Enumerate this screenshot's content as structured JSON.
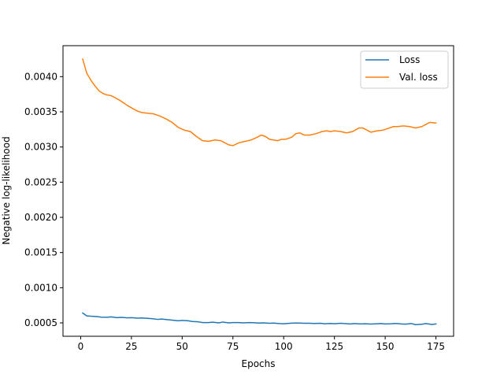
{
  "chart_data": {
    "type": "line",
    "xlabel": "Epochs",
    "ylabel": "Negative log-likelihood",
    "xlim": [
      -8.7,
      183.7
    ],
    "ylim": [
      0.00031,
      0.00444
    ],
    "xticks": [
      0,
      25,
      50,
      75,
      100,
      125,
      150,
      175
    ],
    "yticks": [
      0.0005,
      0.001,
      0.0015,
      0.002,
      0.0025,
      0.003,
      0.0035,
      0.004
    ],
    "xtick_labels": [
      "0",
      "25",
      "50",
      "75",
      "100",
      "125",
      "150",
      "175"
    ],
    "ytick_labels": [
      "0.0005",
      "0.0010",
      "0.0015",
      "0.0020",
      "0.0025",
      "0.0030",
      "0.0035",
      "0.0040"
    ],
    "legend_position": "top-right",
    "grid": false,
    "series": [
      {
        "name": "Loss",
        "color": "#1f77b4",
        "points": [
          [
            1,
            0.00064
          ],
          [
            3,
            0.0006
          ],
          [
            5,
            0.000595
          ],
          [
            8,
            0.00059
          ],
          [
            10,
            0.000582
          ],
          [
            13,
            0.00058
          ],
          [
            15,
            0.000585
          ],
          [
            18,
            0.000575
          ],
          [
            20,
            0.000578
          ],
          [
            23,
            0.000572
          ],
          [
            25,
            0.000575
          ],
          [
            28,
            0.000568
          ],
          [
            30,
            0.00057
          ],
          [
            33,
            0.000565
          ],
          [
            35,
            0.00056
          ],
          [
            38,
            0.00055
          ],
          [
            40,
            0.000555
          ],
          [
            43,
            0.000545
          ],
          [
            45,
            0.00054
          ],
          [
            48,
            0.00053
          ],
          [
            50,
            0.000535
          ],
          [
            53,
            0.00053
          ],
          [
            55,
            0.00052
          ],
          [
            58,
            0.000515
          ],
          [
            60,
            0.000505
          ],
          [
            63,
            0.000505
          ],
          [
            65,
            0.00051
          ],
          [
            68,
            0.0005
          ],
          [
            70,
            0.000512
          ],
          [
            73,
            0.0005
          ],
          [
            75,
            0.000505
          ],
          [
            78,
            0.000505
          ],
          [
            80,
            0.0005
          ],
          [
            83,
            0.000505
          ],
          [
            85,
            0.000503
          ],
          [
            88,
            0.000498
          ],
          [
            90,
            0.0005
          ],
          [
            93,
            0.000495
          ],
          [
            95,
            0.000498
          ],
          [
            98,
            0.00049
          ],
          [
            100,
            0.000488
          ],
          [
            103,
            0.000495
          ],
          [
            105,
            0.000498
          ],
          [
            108,
            0.000497
          ],
          [
            110,
            0.000495
          ],
          [
            113,
            0.000495
          ],
          [
            115,
            0.000492
          ],
          [
            118,
            0.000495
          ],
          [
            120,
            0.000488
          ],
          [
            123,
            0.000492
          ],
          [
            125,
            0.000488
          ],
          [
            128,
            0.000495
          ],
          [
            130,
            0.00049
          ],
          [
            133,
            0.000485
          ],
          [
            135,
            0.00049
          ],
          [
            138,
            0.000485
          ],
          [
            140,
            0.000488
          ],
          [
            143,
            0.000483
          ],
          [
            145,
            0.000487
          ],
          [
            148,
            0.00049
          ],
          [
            150,
            0.000485
          ],
          [
            153,
            0.000488
          ],
          [
            155,
            0.000492
          ],
          [
            158,
            0.000485
          ],
          [
            160,
            0.000482
          ],
          [
            163,
            0.00049
          ],
          [
            165,
            0.000475
          ],
          [
            168,
            0.00048
          ],
          [
            170,
            0.00049
          ],
          [
            173,
            0.000478
          ],
          [
            175,
            0.000485
          ]
        ]
      },
      {
        "name": "Val. loss",
        "color": "#ff7f0e",
        "points": [
          [
            1,
            0.00425
          ],
          [
            2,
            0.00415
          ],
          [
            3,
            0.00405
          ],
          [
            5,
            0.00395
          ],
          [
            7,
            0.00387
          ],
          [
            9,
            0.0038
          ],
          [
            11,
            0.00376
          ],
          [
            13,
            0.00374
          ],
          [
            15,
            0.00373
          ],
          [
            17,
            0.0037
          ],
          [
            20,
            0.00365
          ],
          [
            23,
            0.00359
          ],
          [
            26,
            0.00354
          ],
          [
            28,
            0.00351
          ],
          [
            30,
            0.00349
          ],
          [
            33,
            0.00348
          ],
          [
            36,
            0.00347
          ],
          [
            39,
            0.00344
          ],
          [
            42,
            0.0034
          ],
          [
            45,
            0.00335
          ],
          [
            48,
            0.00328
          ],
          [
            51,
            0.00324
          ],
          [
            54,
            0.00322
          ],
          [
            57,
            0.00315
          ],
          [
            60,
            0.00309
          ],
          [
            63,
            0.00308
          ],
          [
            66,
            0.0031
          ],
          [
            69,
            0.00309
          ],
          [
            71,
            0.00306
          ],
          [
            73,
            0.00303
          ],
          [
            75,
            0.00302
          ],
          [
            78,
            0.00306
          ],
          [
            81,
            0.00308
          ],
          [
            84,
            0.0031
          ],
          [
            87,
            0.00314
          ],
          [
            89,
            0.00317
          ],
          [
            91,
            0.00315
          ],
          [
            93,
            0.00311
          ],
          [
            95,
            0.0031
          ],
          [
            97,
            0.00309
          ],
          [
            99,
            0.00311
          ],
          [
            101,
            0.00311
          ],
          [
            104,
            0.00314
          ],
          [
            106,
            0.00319
          ],
          [
            108,
            0.0032
          ],
          [
            110,
            0.00317
          ],
          [
            113,
            0.00317
          ],
          [
            116,
            0.00319
          ],
          [
            119,
            0.00322
          ],
          [
            121,
            0.00323
          ],
          [
            123,
            0.00322
          ],
          [
            125,
            0.00323
          ],
          [
            128,
            0.00322
          ],
          [
            131,
            0.0032
          ],
          [
            134,
            0.00322
          ],
          [
            137,
            0.00327
          ],
          [
            139,
            0.00327
          ],
          [
            141,
            0.00324
          ],
          [
            143,
            0.00321
          ],
          [
            146,
            0.00323
          ],
          [
            149,
            0.00324
          ],
          [
            152,
            0.00327
          ],
          [
            154,
            0.00329
          ],
          [
            156,
            0.00329
          ],
          [
            159,
            0.0033
          ],
          [
            162,
            0.00329
          ],
          [
            165,
            0.00327
          ],
          [
            168,
            0.00329
          ],
          [
            170,
            0.00332
          ],
          [
            172,
            0.00335
          ],
          [
            175,
            0.00334
          ]
        ]
      }
    ]
  }
}
